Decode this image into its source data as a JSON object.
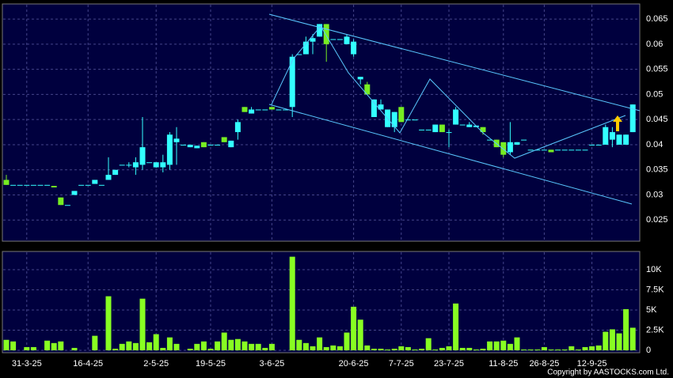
{
  "chart_data": [
    {
      "type": "candlestick",
      "categories": [
        null,
        null,
        null,
        "31-3-25",
        null,
        null,
        null,
        null,
        null,
        null,
        null,
        null,
        "16-4-25",
        null,
        null,
        null,
        null,
        null,
        null,
        null,
        null,
        null,
        "2-5-25",
        null,
        null,
        null,
        null,
        null,
        null,
        null,
        "19-5-25",
        null,
        null,
        null,
        null,
        null,
        null,
        null,
        null,
        "3-6-25",
        null,
        null,
        null,
        null,
        null,
        null,
        null,
        null,
        null,
        null,
        null,
        "20-6-25",
        null,
        null,
        null,
        null,
        null,
        null,
        "7-7-25",
        null,
        null,
        null,
        null,
        null,
        null,
        "23-7-25",
        null,
        null,
        null,
        null,
        null,
        null,
        null,
        "11-8-25",
        null,
        null,
        null,
        null,
        null,
        "26-8-25",
        null,
        null,
        null,
        null,
        null,
        null,
        "12-9-25",
        null,
        null,
        null,
        null,
        null,
        null
      ],
      "open": [
        0.033,
        0.032,
        0.032,
        0.032,
        0.032,
        0.032,
        0.032,
        0.0318,
        0.0295,
        0.028,
        0.03,
        0.032,
        0.032,
        0.0322,
        0.032,
        0.033,
        0.034,
        0.036,
        0.036,
        0.0355,
        0.036,
        0.0365,
        0.0355,
        0.0355,
        0.036,
        0.0405,
        0.04,
        0.0395,
        0.0393,
        0.0405,
        0.04,
        0.04,
        0.0415,
        0.0395,
        0.0425,
        0.0475,
        0.0462,
        0.047,
        0.047,
        0.0475,
        0.047,
        0.047,
        0.0475,
        0.058,
        0.058,
        0.0605,
        0.0615,
        0.064,
        0.061,
        0.061,
        0.06,
        0.058,
        0.053,
        0.052,
        0.0455,
        0.047,
        0.0435,
        0.0435,
        0.0475,
        0.045,
        0.045,
        0.043,
        0.043,
        0.0425,
        0.044,
        0.0425,
        0.044,
        0.044,
        0.0435,
        0.0435,
        0.0435,
        0.041,
        0.041,
        0.0405,
        0.0385,
        0.04,
        0.041,
        0.039,
        0.039,
        0.039,
        0.039,
        0.039,
        0.039,
        0.039,
        0.039,
        0.039,
        0.04,
        0.04,
        0.04,
        0.041,
        0.04,
        0.04,
        0.0425
      ],
      "high": [
        0.034,
        0.032,
        0.032,
        0.032,
        0.032,
        0.032,
        0.032,
        0.0318,
        0.0295,
        0.028,
        0.0308,
        0.032,
        0.032,
        0.033,
        0.032,
        0.0375,
        0.035,
        0.036,
        0.0365,
        0.0375,
        0.0455,
        0.0365,
        0.0365,
        0.038,
        0.0425,
        0.0435,
        0.04,
        0.04,
        0.0398,
        0.0405,
        0.04,
        0.04,
        0.0415,
        0.0408,
        0.045,
        0.0475,
        0.0475,
        0.047,
        0.047,
        0.0475,
        0.047,
        0.047,
        0.058,
        0.058,
        0.0615,
        0.062,
        0.064,
        0.064,
        0.061,
        0.061,
        0.062,
        0.061,
        0.0535,
        0.0525,
        0.049,
        0.049,
        0.047,
        0.0465,
        0.0475,
        0.045,
        0.045,
        0.043,
        0.043,
        0.044,
        0.044,
        0.043,
        0.0475,
        0.044,
        0.0445,
        0.0438,
        0.0435,
        0.041,
        0.041,
        0.0405,
        0.0445,
        0.0405,
        0.041,
        0.039,
        0.039,
        0.039,
        0.039,
        0.039,
        0.039,
        0.039,
        0.039,
        0.039,
        0.04,
        0.04,
        0.044,
        0.0435,
        0.042,
        0.042,
        0.048
      ],
      "low": [
        0.032,
        0.032,
        0.032,
        0.032,
        0.032,
        0.032,
        0.032,
        0.0315,
        0.028,
        0.028,
        0.03,
        0.032,
        0.032,
        0.0322,
        0.032,
        0.033,
        0.034,
        0.036,
        0.0355,
        0.034,
        0.035,
        0.0365,
        0.0355,
        0.0345,
        0.035,
        0.036,
        0.04,
        0.0395,
        0.0393,
        0.0395,
        0.04,
        0.04,
        0.0405,
        0.0395,
        0.041,
        0.0465,
        0.0462,
        0.047,
        0.047,
        0.047,
        0.047,
        0.047,
        0.0455,
        0.058,
        0.058,
        0.058,
        0.0615,
        0.0565,
        0.061,
        0.061,
        0.06,
        0.0575,
        0.052,
        0.05,
        0.0455,
        0.047,
        0.0435,
        0.0425,
        0.0445,
        0.045,
        0.045,
        0.043,
        0.043,
        0.0425,
        0.0425,
        0.0395,
        0.044,
        0.044,
        0.0435,
        0.0435,
        0.042,
        0.041,
        0.0395,
        0.0375,
        0.038,
        0.04,
        0.041,
        0.039,
        0.039,
        0.039,
        0.0385,
        0.039,
        0.039,
        0.039,
        0.039,
        0.039,
        0.04,
        0.04,
        0.04,
        0.0395,
        0.04,
        0.04,
        0.0425
      ],
      "close": [
        0.032,
        0.032,
        0.032,
        0.032,
        0.032,
        0.032,
        0.032,
        0.0315,
        0.028,
        0.028,
        0.0308,
        0.032,
        0.032,
        0.033,
        0.032,
        0.034,
        0.035,
        0.036,
        0.036,
        0.0365,
        0.0395,
        0.0365,
        0.0365,
        0.0365,
        0.042,
        0.0412,
        0.04,
        0.04,
        0.0398,
        0.0395,
        0.04,
        0.04,
        0.0405,
        0.0408,
        0.0445,
        0.0465,
        0.047,
        0.047,
        0.047,
        0.047,
        0.047,
        0.047,
        0.0575,
        0.058,
        0.0605,
        0.0612,
        0.064,
        0.06,
        0.061,
        0.061,
        0.0615,
        0.0605,
        0.0535,
        0.05,
        0.049,
        0.048,
        0.047,
        0.0465,
        0.0445,
        0.045,
        0.045,
        0.043,
        0.043,
        0.044,
        0.0425,
        0.0425,
        0.047,
        0.044,
        0.044,
        0.0438,
        0.0425,
        0.041,
        0.0395,
        0.038,
        0.0405,
        0.0405,
        0.041,
        0.039,
        0.039,
        0.039,
        0.0385,
        0.039,
        0.039,
        0.039,
        0.039,
        0.039,
        0.04,
        0.04,
        0.0435,
        0.0425,
        0.042,
        0.042,
        0.048
      ],
      "up_color": "#33ffff",
      "down_color": "#77ee22",
      "ylim": [
        0.0208,
        0.068
      ],
      "yticks": [
        0.025,
        0.03,
        0.035,
        0.04,
        0.045,
        0.05,
        0.055,
        0.06,
        0.065
      ],
      "grid": true
    },
    {
      "type": "bar",
      "values": [
        1300,
        1100,
        0,
        400,
        400,
        0,
        1200,
        900,
        1100,
        0,
        300,
        0,
        0,
        1800,
        0,
        6700,
        200,
        800,
        1100,
        900,
        6400,
        1000,
        2000,
        300,
        1600,
        800,
        0,
        200,
        800,
        1100,
        200,
        1100,
        2200,
        1300,
        1400,
        1100,
        800,
        800,
        300,
        800,
        0,
        0,
        11600,
        1300,
        900,
        500,
        1600,
        400,
        600,
        500,
        2200,
        5400,
        3800,
        600,
        200,
        200,
        100,
        200,
        500,
        400,
        100,
        200,
        1500,
        100,
        300,
        500,
        5800,
        300,
        300,
        100,
        200,
        1100,
        1100,
        1200,
        800,
        1600,
        100,
        100,
        100,
        400,
        100,
        100,
        100,
        500,
        100,
        400,
        500,
        600,
        2300,
        2600,
        2100,
        5100,
        2800
      ],
      "color": "#88ff22",
      "ylim": [
        0,
        12250
      ],
      "yticks": [
        0,
        {
          "value": 2500,
          "label": "2.5K"
        },
        {
          "value": 5000,
          "label": "5K"
        },
        {
          "value": 7500,
          "label": "7.5K"
        },
        {
          "value": 10000,
          "label": "10K"
        }
      ],
      "grid": true
    }
  ],
  "copyright": "Copyright by AASTOCKS.com Ltd."
}
